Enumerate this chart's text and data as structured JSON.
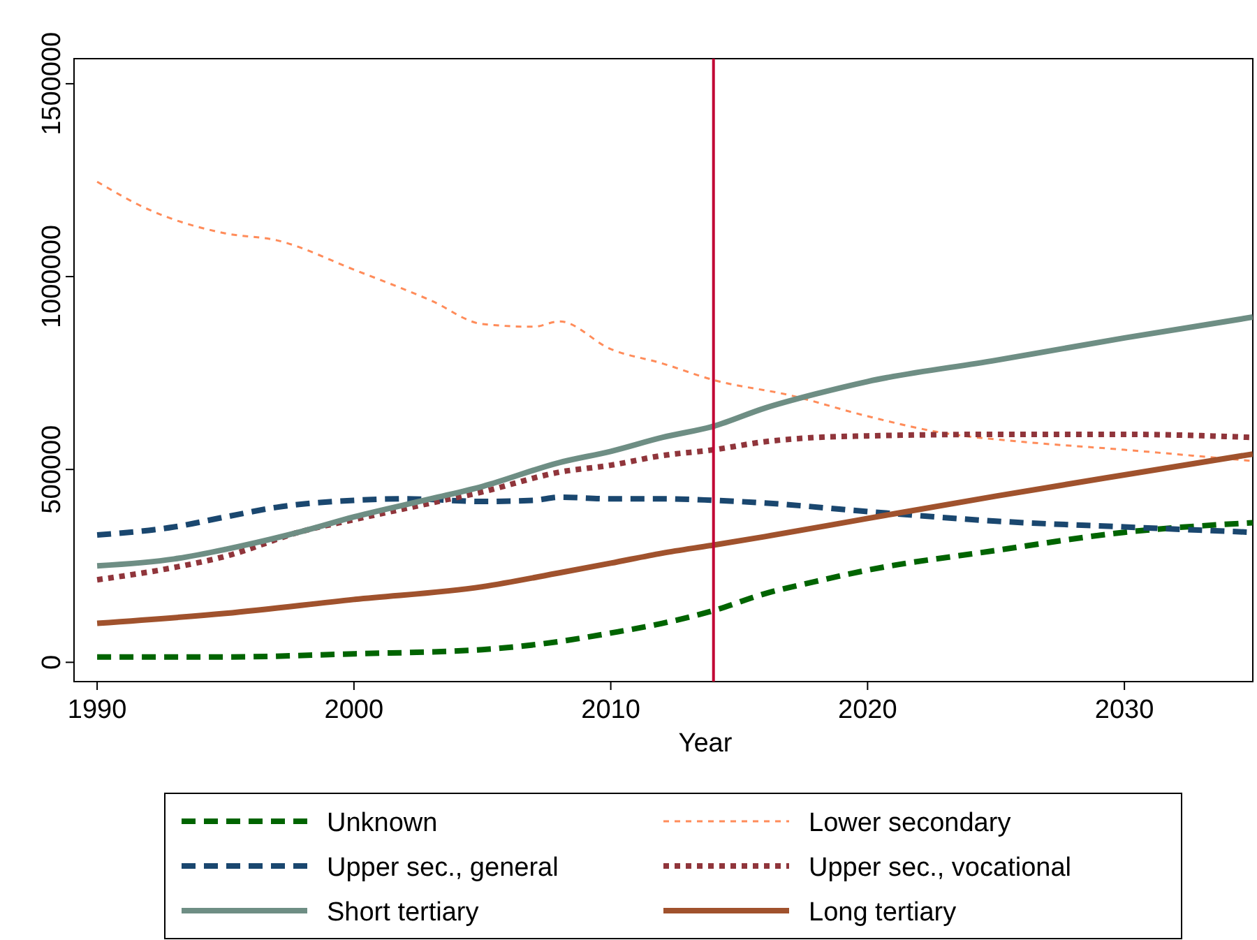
{
  "chart_data": {
    "type": "line",
    "xlabel": "Year",
    "xlim": [
      1989.1,
      2035
    ],
    "xticks": [
      1990,
      2000,
      2010,
      2020,
      2030
    ],
    "ylim": [
      -50000,
      1565000
    ],
    "yticks": [
      0,
      500000,
      1000000,
      1500000
    ],
    "grid": false,
    "legend": "bottom",
    "marker": "none",
    "ref_lines": [
      {
        "axis": "x",
        "value": 2014,
        "color": "#c10534"
      }
    ],
    "series": [
      {
        "name": "Unknown",
        "color": "#006400",
        "line_style": "dashed",
        "x": [
          1990,
          1995,
          2000,
          2005,
          2008,
          2010,
          2012,
          2014,
          2016,
          2018,
          2020,
          2025,
          2030,
          2035
        ],
        "values": [
          14000,
          14000,
          22000,
          33000,
          54000,
          76000,
          101000,
          134000,
          178000,
          210000,
          239000,
          290000,
          337000,
          362000
        ]
      },
      {
        "name": "Lower secondary",
        "color": "#ff8c5a",
        "line_style": "dotted",
        "x": [
          1990,
          1992,
          1995,
          1997,
          2000,
          2003,
          2005,
          2007,
          2008,
          2010,
          2012,
          2014,
          2017,
          2020,
          2023,
          2026,
          2030,
          2035
        ],
        "values": [
          1246000,
          1174000,
          1112000,
          1094000,
          1018000,
          938000,
          877000,
          870000,
          884000,
          812000,
          775000,
          732000,
          692000,
          638000,
          594000,
          572000,
          551000,
          522000
        ]
      },
      {
        "name": "Upper sec., general",
        "color": "#1a476f",
        "line_style": "dashed",
        "x": [
          1990,
          1993,
          1995,
          1997,
          2000,
          2002,
          2005,
          2007,
          2008,
          2010,
          2012,
          2014,
          2016,
          2020,
          2025,
          2030,
          2035
        ],
        "values": [
          330000,
          351000,
          377000,
          402000,
          420000,
          424000,
          417000,
          420000,
          428000,
          424000,
          424000,
          420000,
          413000,
          391000,
          366000,
          351000,
          337000
        ]
      },
      {
        "name": "Upper sec., vocational",
        "color": "#90353b",
        "line_style": "dotted",
        "x": [
          1990,
          1993,
          1995,
          1998,
          2000,
          2003,
          2005,
          2008,
          2010,
          2012,
          2014,
          2016,
          2018,
          2020,
          2025,
          2030,
          2035
        ],
        "values": [
          214000,
          246000,
          275000,
          340000,
          370000,
          413000,
          442000,
          493000,
          511000,
          536000,
          551000,
          572000,
          583000,
          587000,
          591000,
          591000,
          583000
        ]
      },
      {
        "name": "Short tertiary",
        "color": "#6e8e84",
        "line_style": "solid",
        "x": [
          1990,
          1993,
          1995,
          1998,
          2000,
          2003,
          2005,
          2008,
          2010,
          2012,
          2014,
          2016,
          2018,
          2020,
          2025,
          2030,
          2035
        ],
        "values": [
          250000,
          268000,
          293000,
          340000,
          377000,
          424000,
          456000,
          518000,
          547000,
          583000,
          612000,
          659000,
          696000,
          728000,
          783000,
          841000,
          895000
        ]
      },
      {
        "name": "Long tertiary",
        "color": "#a0522d",
        "line_style": "solid",
        "x": [
          1990,
          1995,
          2000,
          2005,
          2008,
          2010,
          2012,
          2014,
          2016,
          2020,
          2025,
          2030,
          2035
        ],
        "values": [
          101000,
          127000,
          163000,
          196000,
          232000,
          257000,
          283000,
          304000,
          326000,
          373000,
          431000,
          486000,
          540000
        ]
      }
    ]
  }
}
